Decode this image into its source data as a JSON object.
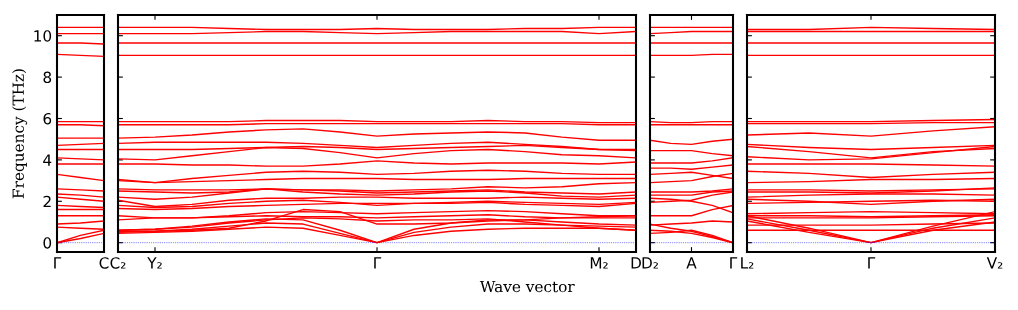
{
  "chart_data": [
    {
      "type": "line",
      "ylabel": "Frequency (THz)",
      "categories": [
        "Γ",
        null,
        "C"
      ],
      "ylim": [
        -0.45,
        11
      ],
      "yticks": [
        0,
        2,
        4,
        6,
        8,
        10
      ],
      "grid": false,
      "marker": "none",
      "line_style": "solid",
      "ref_lines": [
        {
          "axis": "y",
          "value": 0,
          "color": "#0000ff",
          "line_style": "dotted"
        }
      ],
      "series": [
        {
          "color": "#ff0000",
          "values": [
            10.4,
            10.4,
            10.4
          ]
        },
        {
          "color": "#ff0000",
          "values": [
            10.1,
            10.1,
            10.1
          ]
        },
        {
          "color": "#ff0000",
          "values": [
            9.65,
            9.65,
            9.6
          ]
        },
        {
          "color": "#ff0000",
          "values": [
            9.1,
            9.05,
            9.0
          ]
        },
        {
          "color": "#ff0000",
          "values": [
            5.85,
            5.85,
            5.85
          ]
        },
        {
          "color": "#ff0000",
          "values": [
            5.7,
            5.7,
            5.65
          ]
        },
        {
          "color": "#ff0000",
          "values": [
            5.05,
            5.05,
            5.05
          ]
        },
        {
          "color": "#ff0000",
          "values": [
            4.7,
            4.75,
            4.8
          ]
        },
        {
          "color": "#ff0000",
          "values": [
            4.5,
            4.5,
            4.5
          ]
        },
        {
          "color": "#ff0000",
          "values": [
            4.1,
            4.05,
            4.0
          ]
        },
        {
          "color": "#ff0000",
          "values": [
            3.8,
            3.8,
            3.8
          ]
        },
        {
          "color": "#ff0000",
          "values": [
            3.3,
            3.15,
            3.0
          ]
        },
        {
          "color": "#ff0000",
          "values": [
            2.6,
            2.55,
            2.5
          ]
        },
        {
          "color": "#ff0000",
          "values": [
            2.35,
            2.3,
            2.2
          ]
        },
        {
          "color": "#ff0000",
          "values": [
            2.2,
            2.1,
            2.0
          ]
        },
        {
          "color": "#ff0000",
          "values": [
            1.8,
            1.75,
            1.7
          ]
        },
        {
          "color": "#ff0000",
          "values": [
            1.6,
            1.6,
            1.6
          ]
        },
        {
          "color": "#ff0000",
          "values": [
            1.3,
            1.3,
            1.3
          ]
        },
        {
          "color": "#ff0000",
          "values": [
            0.9,
            0.95,
            1.05
          ]
        },
        {
          "color": "#ff0000",
          "values": [
            0.75,
            0.7,
            0.65
          ]
        },
        {
          "color": "#ff0000",
          "values": [
            0,
            0.35,
            0.6
          ]
        },
        {
          "color": "#ff0000",
          "values": [
            0,
            0.2,
            0.45
          ]
        }
      ]
    },
    {
      "type": "line",
      "xlabel": "Wave vector",
      "categories": [
        "C₂",
        "Y₂",
        null,
        null,
        null,
        null,
        null,
        "Γ",
        null,
        null,
        null,
        null,
        null,
        "M₂",
        "D"
      ],
      "ylim": [
        -0.45,
        11
      ],
      "tick_labels": "x",
      "grid": false,
      "marker": "none",
      "line_style": "solid",
      "ref_lines": [
        {
          "axis": "y",
          "value": 0,
          "color": "#0000ff",
          "line_style": "dotted"
        }
      ],
      "series": [
        {
          "color": "#ff0000",
          "values": [
            10.4,
            10.4,
            10.4,
            10.35,
            10.3,
            10.3,
            10.3,
            10.35,
            10.3,
            10.3,
            10.3,
            10.35,
            10.35,
            10.4,
            10.4
          ]
        },
        {
          "color": "#ff0000",
          "values": [
            10.1,
            10.1,
            10.1,
            10.15,
            10.2,
            10.2,
            10.15,
            10.1,
            10.15,
            10.2,
            10.2,
            10.2,
            10.2,
            10.1,
            10.2
          ]
        },
        {
          "color": "#ff0000",
          "values": [
            9.65,
            9.65,
            9.65,
            9.65,
            9.65,
            9.65,
            9.65,
            9.65,
            9.65,
            9.65,
            9.65,
            9.65,
            9.65,
            9.65,
            9.65
          ]
        },
        {
          "color": "#ff0000",
          "values": [
            9.05,
            9.05,
            9.05,
            9.05,
            9.05,
            9.05,
            9.05,
            9.05,
            9.05,
            9.05,
            9.05,
            9.05,
            9.05,
            9.05,
            9.05
          ]
        },
        {
          "color": "#ff0000",
          "values": [
            5.85,
            5.85,
            5.85,
            5.85,
            5.9,
            5.9,
            5.9,
            5.85,
            5.85,
            5.85,
            5.9,
            5.85,
            5.85,
            5.8,
            5.8
          ]
        },
        {
          "color": "#ff0000",
          "values": [
            5.7,
            5.7,
            5.7,
            5.7,
            5.75,
            5.75,
            5.75,
            5.75,
            5.75,
            5.75,
            5.75,
            5.75,
            5.75,
            5.7,
            5.7
          ]
        },
        {
          "color": "#ff0000",
          "values": [
            5.05,
            5.1,
            5.2,
            5.35,
            5.45,
            5.5,
            5.35,
            5.15,
            5.25,
            5.3,
            5.35,
            5.3,
            5.1,
            4.95,
            4.95
          ]
        },
        {
          "color": "#ff0000",
          "values": [
            4.8,
            4.85,
            4.85,
            4.85,
            4.85,
            4.8,
            4.7,
            4.6,
            4.7,
            4.8,
            4.85,
            4.75,
            4.65,
            4.5,
            4.5
          ]
        },
        {
          "color": "#ff0000",
          "values": [
            4.5,
            4.5,
            4.5,
            4.55,
            4.6,
            4.65,
            4.6,
            4.5,
            4.55,
            4.6,
            4.65,
            4.7,
            4.6,
            4.5,
            4.45
          ]
        },
        {
          "color": "#ff0000",
          "values": [
            4.05,
            4.0,
            4.2,
            4.4,
            4.6,
            4.55,
            4.35,
            4.1,
            4.3,
            4.45,
            4.5,
            4.4,
            4.25,
            4.2,
            4.1
          ]
        },
        {
          "color": "#ff0000",
          "values": [
            3.8,
            3.8,
            3.75,
            3.75,
            3.7,
            3.7,
            3.8,
            3.95,
            3.85,
            3.8,
            3.85,
            3.85,
            3.85,
            3.8,
            3.9
          ]
        },
        {
          "color": "#ff0000",
          "values": [
            3.05,
            2.9,
            3.1,
            3.25,
            3.4,
            3.45,
            3.4,
            3.3,
            3.35,
            3.45,
            3.5,
            3.45,
            3.35,
            3.3,
            3.3
          ]
        },
        {
          "color": "#ff0000",
          "values": [
            3.0,
            2.9,
            2.95,
            3.0,
            3.05,
            3.1,
            3.1,
            3.1,
            3.05,
            3.05,
            3.05,
            3.1,
            3.1,
            3.1,
            3.1
          ]
        },
        {
          "color": "#ff0000",
          "values": [
            2.6,
            2.55,
            2.55,
            2.55,
            2.6,
            2.55,
            2.55,
            2.5,
            2.55,
            2.6,
            2.7,
            2.65,
            2.7,
            2.85,
            2.9
          ]
        },
        {
          "color": "#ff0000",
          "values": [
            2.5,
            2.45,
            2.4,
            2.45,
            2.6,
            2.55,
            2.5,
            2.4,
            2.45,
            2.5,
            2.55,
            2.45,
            2.4,
            2.35,
            2.45
          ]
        },
        {
          "color": "#ff0000",
          "values": [
            2.2,
            2.1,
            2.2,
            2.4,
            2.6,
            2.45,
            2.35,
            2.3,
            2.35,
            2.45,
            2.5,
            2.4,
            2.25,
            2.2,
            2.3
          ]
        },
        {
          "color": "#ff0000",
          "values": [
            2.05,
            1.75,
            1.85,
            2.05,
            2.15,
            2.15,
            2.2,
            2.2,
            2.15,
            2.15,
            2.15,
            2.2,
            2.15,
            2.1,
            2.15
          ]
        },
        {
          "color": "#ff0000",
          "values": [
            1.8,
            1.7,
            1.75,
            1.9,
            2.0,
            2.05,
            1.95,
            1.8,
            1.9,
            1.95,
            2.0,
            1.95,
            1.9,
            1.85,
            1.95
          ]
        },
        {
          "color": "#ff0000",
          "values": [
            1.65,
            1.6,
            1.65,
            1.75,
            1.8,
            1.85,
            1.9,
            1.9,
            1.9,
            1.9,
            1.95,
            1.85,
            1.8,
            1.75,
            1.9
          ]
        },
        {
          "color": "#ff0000",
          "values": [
            1.3,
            1.2,
            1.2,
            1.3,
            1.45,
            1.5,
            1.45,
            1.4,
            1.45,
            1.5,
            1.55,
            1.5,
            1.4,
            1.3,
            1.3
          ]
        },
        {
          "color": "#ff0000",
          "values": [
            1.1,
            1.2,
            1.2,
            1.25,
            1.3,
            1.25,
            1.25,
            1.2,
            1.25,
            1.3,
            1.35,
            1.25,
            1.2,
            1.2,
            1.2
          ]
        },
        {
          "color": "#ff0000",
          "values": [
            0.6,
            0.65,
            0.75,
            0.95,
            1.1,
            1.2,
            1.15,
            1.05,
            1.1,
            1.1,
            1.15,
            1.0,
            0.85,
            0.7,
            0.6
          ]
        },
        {
          "color": "#ff0000",
          "values": [
            0.55,
            0.55,
            0.6,
            0.7,
            1.05,
            1.6,
            1.5,
            0.9,
            0.9,
            0.95,
            1.05,
            1.1,
            1.2,
            1.25,
            1.3
          ]
        },
        {
          "color": "#ff0000",
          "values": [
            0.45,
            0.5,
            0.55,
            0.65,
            0.75,
            0.7,
            0.35,
            0,
            0.35,
            0.55,
            0.65,
            0.7,
            0.7,
            0.7,
            0.6
          ]
        },
        {
          "color": "#ff0000",
          "values": [
            0.5,
            0.55,
            0.65,
            0.8,
            0.95,
            0.9,
            0.45,
            0,
            0.5,
            0.75,
            0.9,
            0.9,
            0.85,
            0.8,
            0.75
          ]
        },
        {
          "color": "#ff0000",
          "values": [
            0.6,
            0.65,
            0.8,
            1.0,
            1.15,
            1.1,
            0.6,
            0,
            0.65,
            0.95,
            1.1,
            1.1,
            1.0,
            0.9,
            0.85
          ]
        }
      ]
    },
    {
      "type": "line",
      "categories": [
        "D₂",
        null,
        "A",
        null,
        "Γ"
      ],
      "ylim": [
        -0.45,
        11
      ],
      "tick_labels": "x",
      "grid": false,
      "marker": "none",
      "line_style": "solid",
      "ref_lines": [
        {
          "axis": "y",
          "value": 0,
          "color": "#0000ff",
          "line_style": "dotted"
        }
      ],
      "series": [
        {
          "color": "#ff0000",
          "values": [
            10.4,
            10.4,
            10.4,
            10.4,
            10.4
          ]
        },
        {
          "color": "#ff0000",
          "values": [
            10.1,
            10.15,
            10.2,
            10.2,
            10.2
          ]
        },
        {
          "color": "#ff0000",
          "values": [
            9.65,
            9.65,
            9.65,
            9.65,
            9.65
          ]
        },
        {
          "color": "#ff0000",
          "values": [
            9.05,
            9.05,
            9.05,
            9.1,
            9.1
          ]
        },
        {
          "color": "#ff0000",
          "values": [
            5.85,
            5.8,
            5.8,
            5.85,
            5.85
          ]
        },
        {
          "color": "#ff0000",
          "values": [
            5.7,
            5.7,
            5.7,
            5.7,
            5.7
          ]
        },
        {
          "color": "#ff0000",
          "values": [
            4.95,
            4.8,
            4.75,
            4.9,
            5.0
          ]
        },
        {
          "color": "#ff0000",
          "values": [
            4.45,
            4.45,
            4.45,
            4.3,
            4.2
          ]
        },
        {
          "color": "#ff0000",
          "values": [
            3.85,
            3.85,
            3.85,
            3.95,
            4.1
          ]
        },
        {
          "color": "#ff0000",
          "values": [
            3.6,
            3.6,
            3.55,
            3.65,
            3.75
          ]
        },
        {
          "color": "#ff0000",
          "values": [
            3.3,
            3.35,
            3.4,
            3.25,
            3.1
          ]
        },
        {
          "color": "#ff0000",
          "values": [
            2.9,
            2.95,
            3.0,
            3.2,
            3.35
          ]
        },
        {
          "color": "#ff0000",
          "values": [
            2.45,
            2.45,
            2.45,
            2.5,
            2.6
          ]
        },
        {
          "color": "#ff0000",
          "values": [
            2.3,
            2.3,
            2.3,
            2.45,
            2.5
          ]
        },
        {
          "color": "#ff0000",
          "values": [
            2.15,
            2.1,
            2.0,
            1.8,
            1.45
          ]
        },
        {
          "color": "#ff0000",
          "values": [
            1.95,
            2.0,
            2.05,
            2.3,
            2.45
          ]
        },
        {
          "color": "#ff0000",
          "values": [
            1.3,
            1.3,
            1.3,
            1.6,
            1.8
          ]
        },
        {
          "color": "#ff0000",
          "values": [
            0.85,
            0.9,
            0.95,
            1.05,
            1.0
          ]
        },
        {
          "color": "#ff0000",
          "values": [
            0.9,
            0.7,
            0.55,
            0.3,
            0
          ]
        },
        {
          "color": "#ff0000",
          "values": [
            0.6,
            0.55,
            0.45,
            0.25,
            0
          ]
        },
        {
          "color": "#ff0000",
          "values": [
            0.45,
            0.5,
            0.6,
            0.35,
            0
          ]
        }
      ]
    },
    {
      "type": "line",
      "categories": [
        "L₂",
        null,
        "Γ",
        null,
        "V₂"
      ],
      "ylim": [
        -0.45,
        11
      ],
      "tick_labels": "x",
      "grid": false,
      "marker": "none",
      "line_style": "solid",
      "ref_lines": [
        {
          "axis": "y",
          "value": 0,
          "color": "#0000ff",
          "line_style": "dotted"
        }
      ],
      "series": [
        {
          "color": "#ff0000",
          "values": [
            10.3,
            10.3,
            10.4,
            10.35,
            10.3
          ]
        },
        {
          "color": "#ff0000",
          "values": [
            10.2,
            10.2,
            10.2,
            10.2,
            10.2
          ]
        },
        {
          "color": "#ff0000",
          "values": [
            9.65,
            9.65,
            9.65,
            9.65,
            9.65
          ]
        },
        {
          "color": "#ff0000",
          "values": [
            9.05,
            9.05,
            9.05,
            9.05,
            9.05
          ]
        },
        {
          "color": "#ff0000",
          "values": [
            5.85,
            5.85,
            5.85,
            5.9,
            5.95
          ]
        },
        {
          "color": "#ff0000",
          "values": [
            5.75,
            5.75,
            5.75,
            5.8,
            5.8
          ]
        },
        {
          "color": "#ff0000",
          "values": [
            5.2,
            5.3,
            5.15,
            5.4,
            5.6
          ]
        },
        {
          "color": "#ff0000",
          "values": [
            4.75,
            4.6,
            4.5,
            4.6,
            4.7
          ]
        },
        {
          "color": "#ff0000",
          "values": [
            4.65,
            4.4,
            4.1,
            4.4,
            4.55
          ]
        },
        {
          "color": "#ff0000",
          "values": [
            4.15,
            4.0,
            4.05,
            4.35,
            4.65
          ]
        },
        {
          "color": "#ff0000",
          "values": [
            3.8,
            3.8,
            3.8,
            3.75,
            3.7
          ]
        },
        {
          "color": "#ff0000",
          "values": [
            3.45,
            3.35,
            3.15,
            3.3,
            3.4
          ]
        },
        {
          "color": "#ff0000",
          "values": [
            2.9,
            2.95,
            3.05,
            3.05,
            3.1
          ]
        },
        {
          "color": "#ff0000",
          "values": [
            2.55,
            2.55,
            2.5,
            2.55,
            2.6
          ]
        },
        {
          "color": "#ff0000",
          "values": [
            2.45,
            2.45,
            2.4,
            2.5,
            2.65
          ]
        },
        {
          "color": "#ff0000",
          "values": [
            2.2,
            2.3,
            2.35,
            2.35,
            2.3
          ]
        },
        {
          "color": "#ff0000",
          "values": [
            2.1,
            2.0,
            1.85,
            2.0,
            2.1
          ]
        },
        {
          "color": "#ff0000",
          "values": [
            1.9,
            1.95,
            2.0,
            2.05,
            2.0
          ]
        },
        {
          "color": "#ff0000",
          "values": [
            1.4,
            1.45,
            1.5,
            1.45,
            1.4
          ]
        },
        {
          "color": "#ff0000",
          "values": [
            1.3,
            1.3,
            1.25,
            1.3,
            1.35
          ]
        },
        {
          "color": "#ff0000",
          "values": [
            1.2,
            1.2,
            1.2,
            1.25,
            1.3
          ]
        },
        {
          "color": "#ff0000",
          "values": [
            0.85,
            0.85,
            0.85,
            0.9,
            0.95
          ]
        },
        {
          "color": "#ff0000",
          "values": [
            0.6,
            0.6,
            0.6,
            0.6,
            0.6
          ]
        },
        {
          "color": "#ff0000",
          "values": [
            1.3,
            0.7,
            0,
            0.8,
            1.5
          ]
        },
        {
          "color": "#ff0000",
          "values": [
            1.15,
            0.6,
            0,
            0.7,
            1.2
          ]
        },
        {
          "color": "#ff0000",
          "values": [
            1.05,
            0.5,
            0,
            0.6,
            1.0
          ]
        }
      ]
    }
  ]
}
